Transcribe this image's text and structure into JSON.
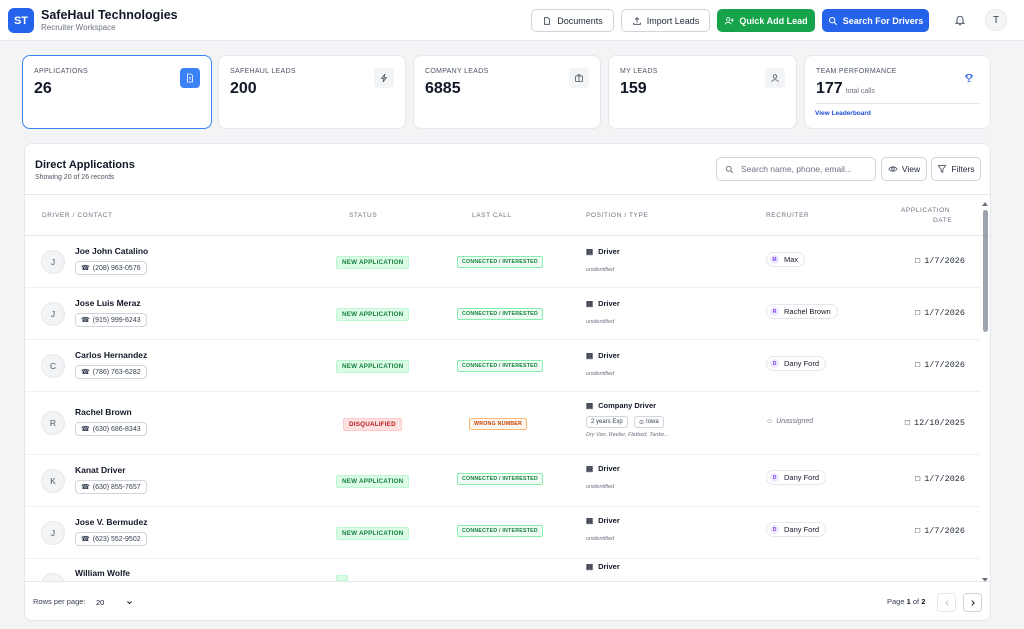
{
  "header": {
    "logo": "ST",
    "company": "SafeHaul Technologies",
    "workspace": "Recruiter Workspace",
    "buttons": {
      "documents": "Documents",
      "import": "Import Leads",
      "quick_add": "Quick Add Lead",
      "search": "Search For Drivers"
    },
    "user_initial": "T",
    "colors": {
      "primary": "#2563eb",
      "success": "#16a34a"
    }
  },
  "stats": [
    {
      "label": "APPLICATIONS",
      "value": "26",
      "icon": "document-icon",
      "active": true
    },
    {
      "label": "SAFEHAUL LEADS",
      "value": "200",
      "icon": "lightning-icon"
    },
    {
      "label": "COMPANY LEADS",
      "value": "6885",
      "icon": "briefcase-icon"
    },
    {
      "label": "MY LEADS",
      "value": "159",
      "icon": "user-icon"
    },
    {
      "label": "TEAM PERFORMANCE",
      "value": "177",
      "sub": "total calls",
      "link": "View Leaderboard",
      "icon": "trophy-icon"
    }
  ],
  "panel": {
    "title": "Direct Applications",
    "subtitle": "Showing 20 of 26 records",
    "search_placeholder": "Search name, phone, email...",
    "view_label": "View",
    "filters_label": "Filters",
    "columns": [
      "DRIVER / CONTACT",
      "STATUS",
      "LAST CALL",
      "POSITION / TYPE",
      "RECRUITER",
      "APPLICATION",
      "DATE"
    ],
    "rows": [
      {
        "initial": "J",
        "name": "Joe John Catalino",
        "phone": "(208) 963-0576",
        "status": "NEW APPLICATION",
        "last_call": "CONNECTED / INTERESTED",
        "position": "Driver",
        "pos_sub": "unidentified",
        "recruiter_initial": "M",
        "recruiter": "Max",
        "date": "1/7/2026"
      },
      {
        "initial": "J",
        "name": "Jose Luis Meraz",
        "phone": "(915) 999-6243",
        "status": "NEW APPLICATION",
        "last_call": "CONNECTED / INTERESTED",
        "position": "Driver",
        "pos_sub": "unidentified",
        "recruiter_initial": "R",
        "recruiter": "Rachel Brown",
        "date": "1/7/2026"
      },
      {
        "initial": "C",
        "name": "Carlos Hernandez",
        "phone": "(786) 763-6282",
        "status": "NEW APPLICATION",
        "last_call": "CONNECTED / INTERESTED",
        "position": "Driver",
        "pos_sub": "unidentified",
        "recruiter_initial": "D",
        "recruiter": "Dany Ford",
        "date": "1/7/2026"
      },
      {
        "initial": "R",
        "name": "Rachel Brown",
        "phone": "(630) 686-8343",
        "status": "DISQUALIFIED",
        "last_call": "WRONG NUMBER",
        "position": "Company Driver",
        "chips": [
          "2 years Exp",
          "Iowa"
        ],
        "pos_sub": "Dry Van, Reefer, Flatbed, Tanke...",
        "recruiter": "Unassigned",
        "date": "12/10/2025"
      },
      {
        "initial": "K",
        "name": "Kanat Driver",
        "phone": "(630) 855-7657",
        "status": "NEW APPLICATION",
        "last_call": "CONNECTED / INTERESTED",
        "position": "Driver",
        "pos_sub": "unidentified",
        "recruiter_initial": "D",
        "recruiter": "Dany Ford",
        "date": "1/7/2026"
      },
      {
        "initial": "J",
        "name": "Jose V. Bermudez",
        "phone": "(623) 552-9502",
        "status": "NEW APPLICATION",
        "last_call": "CONNECTED / INTERESTED",
        "position": "Driver",
        "pos_sub": "unidentified",
        "recruiter_initial": "D",
        "recruiter": "Dany Ford",
        "date": "1/7/2026"
      },
      {
        "initial": "W",
        "name": "William Wolfe",
        "position": "Driver"
      }
    ],
    "footer": {
      "rows_per_page_label": "Rows per page:",
      "rows_per_page": "20",
      "page_label": "Page",
      "page": "1",
      "of_label": "of",
      "total_pages": "2"
    }
  }
}
